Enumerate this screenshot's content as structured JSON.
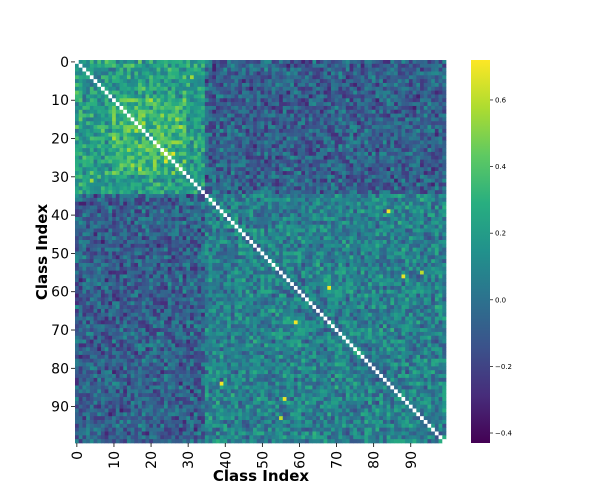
{
  "chart_data": {
    "type": "heatmap",
    "title": "",
    "xlabel": "Class Index",
    "ylabel": "Class Index",
    "n_classes": 100,
    "x_ticks": [
      0,
      10,
      20,
      30,
      40,
      50,
      60,
      70,
      80,
      90
    ],
    "y_ticks": [
      0,
      10,
      20,
      30,
      40,
      50,
      60,
      70,
      80,
      90
    ],
    "x_tick_labels": [
      "0",
      "10",
      "20",
      "30",
      "40",
      "50",
      "60",
      "70",
      "80",
      "90"
    ],
    "y_tick_labels": [
      "0",
      "10",
      "20",
      "30",
      "40",
      "50",
      "60",
      "70",
      "80",
      "90"
    ],
    "diagonal_color": "#ffffff",
    "colormap": "viridis",
    "colorbar": {
      "vmin": -0.43,
      "vmax": 0.72,
      "ticks": [
        -0.4,
        -0.2,
        0.0,
        0.2,
        0.4,
        0.6
      ],
      "tick_labels": [
        "−0.4",
        "−0.2",
        "0.0",
        "0.2",
        "0.4",
        "0.6"
      ]
    },
    "blocks": [
      {
        "name": "classes 0-34 within-block",
        "rows": [
          0,
          34
        ],
        "cols": [
          0,
          34
        ],
        "mean": 0.2
      },
      {
        "name": "classes 10-29 cluster",
        "rows": [
          10,
          29
        ],
        "cols": [
          10,
          29
        ],
        "mean": 0.33
      },
      {
        "name": "classes 35-99 within-block",
        "rows": [
          35,
          99
        ],
        "cols": [
          35,
          99
        ],
        "mean": 0.07
      },
      {
        "name": "cross-block",
        "rows": [
          0,
          34
        ],
        "cols": [
          35,
          99
        ],
        "mean": -0.08
      }
    ],
    "highlight_cells": [
      {
        "row": 24,
        "col": 26,
        "value": 0.66
      },
      {
        "row": 26,
        "col": 24,
        "value": 0.66
      },
      {
        "row": 39,
        "col": 84,
        "value": 0.7
      },
      {
        "row": 84,
        "col": 39,
        "value": 0.7
      },
      {
        "row": 56,
        "col": 88,
        "value": 0.68
      },
      {
        "row": 88,
        "col": 56,
        "value": 0.68
      },
      {
        "row": 59,
        "col": 68,
        "value": 0.7
      },
      {
        "row": 68,
        "col": 59,
        "value": 0.7
      },
      {
        "row": 55,
        "col": 93,
        "value": 0.6
      },
      {
        "row": 93,
        "col": 55,
        "value": 0.6
      },
      {
        "row": 31,
        "col": 4,
        "value": 0.55
      },
      {
        "row": 4,
        "col": 31,
        "value": 0.55
      }
    ]
  }
}
